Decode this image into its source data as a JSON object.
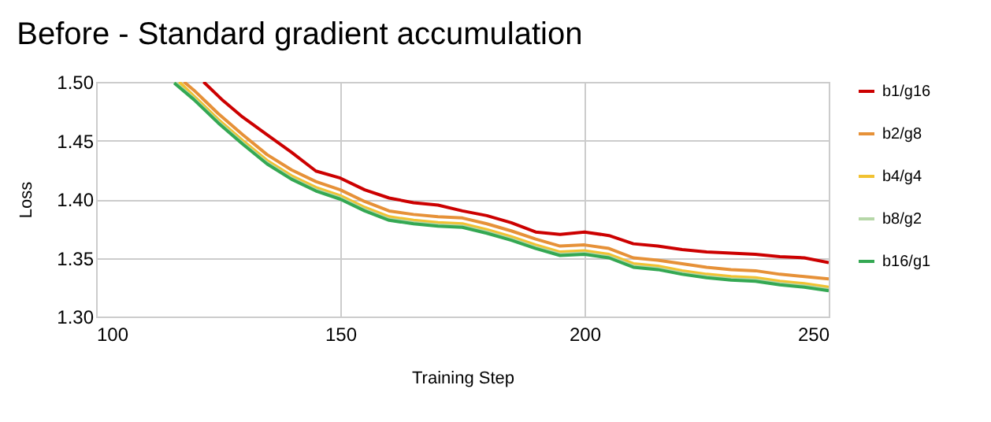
{
  "chart_data": {
    "type": "line",
    "title": "Before - Standard gradient accumulation",
    "xlabel": "Training Step",
    "ylabel": "Loss",
    "xlim": [
      100,
      250
    ],
    "xticks": [
      100,
      150,
      200,
      250
    ],
    "ylim": [
      1.3,
      1.5
    ],
    "yticks": [
      {
        "value": 1.3,
        "label": "1.30"
      },
      {
        "value": 1.35,
        "label": "1.35"
      },
      {
        "value": 1.4,
        "label": "1.40"
      },
      {
        "value": 1.45,
        "label": "1.45"
      },
      {
        "value": 1.5,
        "label": "1.50"
      }
    ],
    "grid": true,
    "legend": "right",
    "line_style": "solid",
    "marker": "none",
    "series": [
      {
        "name": "b1/g16",
        "color": "#cc0000",
        "x": [
          122,
          126,
          130,
          135,
          140,
          145,
          150,
          155,
          160,
          165,
          170,
          175,
          180,
          185,
          190,
          195,
          200,
          205,
          210,
          215,
          220,
          225,
          230,
          235,
          240,
          245,
          250
        ],
        "values": [
          1.5,
          1.484,
          1.47,
          1.455,
          1.44,
          1.424,
          1.418,
          1.408,
          1.401,
          1.397,
          1.395,
          1.39,
          1.386,
          1.38,
          1.372,
          1.37,
          1.372,
          1.369,
          1.362,
          1.36,
          1.357,
          1.355,
          1.354,
          1.353,
          1.351,
          1.35,
          1.346
        ]
      },
      {
        "name": "b2/g8",
        "color": "#e69138",
        "x": [
          118,
          120,
          125,
          130,
          135,
          140,
          145,
          150,
          155,
          160,
          165,
          170,
          175,
          180,
          185,
          190,
          195,
          200,
          205,
          210,
          215,
          220,
          225,
          230,
          235,
          240,
          245,
          250
        ],
        "values": [
          1.5,
          1.493,
          1.473,
          1.455,
          1.438,
          1.425,
          1.415,
          1.408,
          1.398,
          1.39,
          1.387,
          1.385,
          1.384,
          1.379,
          1.373,
          1.366,
          1.36,
          1.361,
          1.358,
          1.35,
          1.348,
          1.345,
          1.342,
          1.34,
          1.339,
          1.336,
          1.334,
          1.332
        ]
      },
      {
        "name": "b4/g4",
        "color": "#f1c232",
        "x": [
          117,
          120,
          125,
          130,
          135,
          140,
          145,
          150,
          155,
          160,
          165,
          170,
          175,
          180,
          185,
          190,
          195,
          200,
          205,
          210,
          215,
          220,
          225,
          230,
          235,
          240,
          245,
          250
        ],
        "values": [
          1.5,
          1.488,
          1.468,
          1.45,
          1.433,
          1.42,
          1.41,
          1.403,
          1.393,
          1.385,
          1.382,
          1.38,
          1.379,
          1.374,
          1.368,
          1.361,
          1.355,
          1.356,
          1.353,
          1.345,
          1.343,
          1.339,
          1.336,
          1.334,
          1.333,
          1.33,
          1.328,
          1.325
        ]
      },
      {
        "name": "b8/g2",
        "color": "#b6d7a8",
        "x": [
          116,
          120,
          125,
          130,
          135,
          140,
          145,
          150,
          155,
          160,
          165,
          170,
          175,
          180,
          185,
          190,
          195,
          200,
          205,
          210,
          215,
          220,
          225,
          230,
          235,
          240,
          245,
          250
        ],
        "values": [
          1.5,
          1.486,
          1.466,
          1.448,
          1.431,
          1.418,
          1.408,
          1.401,
          1.391,
          1.383,
          1.38,
          1.378,
          1.377,
          1.372,
          1.366,
          1.359,
          1.353,
          1.354,
          1.351,
          1.343,
          1.341,
          1.337,
          1.334,
          1.332,
          1.331,
          1.328,
          1.326,
          1.323
        ]
      },
      {
        "name": "b16/g1",
        "color": "#34a853",
        "x": [
          116,
          120,
          125,
          130,
          135,
          140,
          145,
          150,
          155,
          160,
          165,
          170,
          175,
          180,
          185,
          190,
          195,
          200,
          205,
          210,
          215,
          220,
          225,
          230,
          235,
          240,
          245,
          250
        ],
        "values": [
          1.499,
          1.485,
          1.465,
          1.447,
          1.43,
          1.417,
          1.407,
          1.4,
          1.39,
          1.382,
          1.379,
          1.377,
          1.376,
          1.371,
          1.365,
          1.358,
          1.352,
          1.353,
          1.35,
          1.342,
          1.34,
          1.336,
          1.333,
          1.331,
          1.33,
          1.327,
          1.325,
          1.322
        ]
      }
    ]
  }
}
